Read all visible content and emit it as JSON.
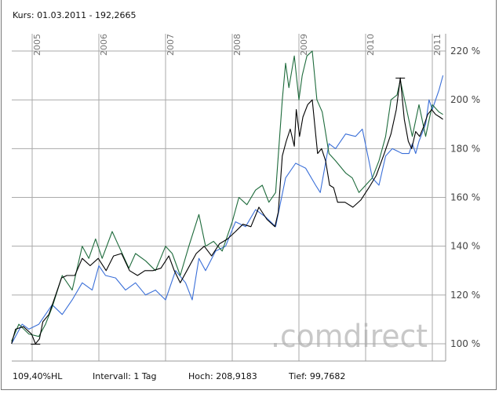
{
  "header": {
    "quote": "Kurs: 01.03.2011 - 192,2665"
  },
  "footer": {
    "range": "109,40%HL",
    "interval": "Intervall: 1 Tag",
    "high": "Hoch: 208,9183",
    "low": "Tief: 99,7682"
  },
  "watermark": {
    "logo_text": ".comdirect"
  },
  "colors": {
    "main": "#000000",
    "compare1": "#1e6b3c",
    "compare2": "#3a6fd8",
    "grid": "#aaaaaa",
    "axis_text": "#444444"
  },
  "chart_data": {
    "type": "line",
    "title": "",
    "xlabel": "",
    "ylabel": "",
    "xlim": [
      2004.69,
      2011.17
    ],
    "ylim": [
      92,
      228
    ],
    "grid": true,
    "x_ticks": [
      "2005",
      "2006",
      "2007",
      "2008",
      "2009",
      "2010",
      "2011"
    ],
    "x_tick_values": [
      2005,
      2006,
      2007,
      2008,
      2009,
      2010,
      2011
    ],
    "y_ticks": [
      "100 %",
      "120 %",
      "140 %",
      "160 %",
      "180 %",
      "200 %",
      "220 %"
    ],
    "y_tick_values": [
      100,
      120,
      140,
      160,
      180,
      200,
      220
    ],
    "high_marker": [
      2010.52,
      208.9
    ],
    "low_marker": [
      2005.05,
      99.8
    ],
    "series": [
      {
        "color": "#000000",
        "points": [
          [
            2004.69,
            100
          ],
          [
            2004.75,
            106
          ],
          [
            2004.87,
            107
          ],
          [
            2004.99,
            104
          ],
          [
            2005.05,
            100
          ],
          [
            2005.11,
            102
          ],
          [
            2005.16,
            109
          ],
          [
            2005.25,
            112
          ],
          [
            2005.34,
            119
          ],
          [
            2005.44,
            127
          ],
          [
            2005.52,
            128
          ],
          [
            2005.64,
            128
          ],
          [
            2005.75,
            135
          ],
          [
            2005.87,
            132
          ],
          [
            2005.99,
            135
          ],
          [
            2006.11,
            130
          ],
          [
            2006.22,
            136
          ],
          [
            2006.34,
            137
          ],
          [
            2006.46,
            130
          ],
          [
            2006.58,
            128
          ],
          [
            2006.69,
            130
          ],
          [
            2006.81,
            130
          ],
          [
            2006.93,
            131
          ],
          [
            2007.05,
            136
          ],
          [
            2007.13,
            130
          ],
          [
            2007.22,
            125
          ],
          [
            2007.34,
            131
          ],
          [
            2007.46,
            137
          ],
          [
            2007.58,
            140
          ],
          [
            2007.69,
            136
          ],
          [
            2007.81,
            141
          ],
          [
            2007.93,
            143
          ],
          [
            2008.05,
            146
          ],
          [
            2008.16,
            149
          ],
          [
            2008.28,
            148
          ],
          [
            2008.4,
            156
          ],
          [
            2008.52,
            151
          ],
          [
            2008.64,
            148
          ],
          [
            2008.69,
            154
          ],
          [
            2008.75,
            177
          ],
          [
            2008.81,
            183
          ],
          [
            2008.87,
            188
          ],
          [
            2008.93,
            181
          ],
          [
            2008.96,
            196
          ],
          [
            2009.01,
            185
          ],
          [
            2009.06,
            193
          ],
          [
            2009.13,
            198
          ],
          [
            2009.2,
            200
          ],
          [
            2009.25,
            186
          ],
          [
            2009.28,
            178
          ],
          [
            2009.34,
            180
          ],
          [
            2009.4,
            175
          ],
          [
            2009.46,
            165
          ],
          [
            2009.52,
            164
          ],
          [
            2009.58,
            158
          ],
          [
            2009.69,
            158
          ],
          [
            2009.81,
            156
          ],
          [
            2009.93,
            159
          ],
          [
            2010.05,
            164
          ],
          [
            2010.16,
            169
          ],
          [
            2010.28,
            178
          ],
          [
            2010.38,
            186
          ],
          [
            2010.46,
            196
          ],
          [
            2010.52,
            209
          ],
          [
            2010.58,
            192
          ],
          [
            2010.64,
            183
          ],
          [
            2010.69,
            180
          ],
          [
            2010.75,
            187
          ],
          [
            2010.81,
            185
          ],
          [
            2010.87,
            189
          ],
          [
            2010.93,
            194
          ],
          [
            2010.99,
            196
          ],
          [
            2011.05,
            194
          ],
          [
            2011.11,
            193
          ],
          [
            2011.16,
            192
          ]
        ]
      },
      {
        "color": "#1e6b3c",
        "points": [
          [
            2004.69,
            101
          ],
          [
            2004.8,
            108
          ],
          [
            2004.95,
            104
          ],
          [
            2005.1,
            103
          ],
          [
            2005.2,
            108
          ],
          [
            2005.3,
            115
          ],
          [
            2005.45,
            128
          ],
          [
            2005.6,
            122
          ],
          [
            2005.75,
            140
          ],
          [
            2005.85,
            135
          ],
          [
            2005.95,
            143
          ],
          [
            2006.05,
            135
          ],
          [
            2006.2,
            146
          ],
          [
            2006.3,
            140
          ],
          [
            2006.45,
            131
          ],
          [
            2006.55,
            137
          ],
          [
            2006.7,
            134
          ],
          [
            2006.85,
            130
          ],
          [
            2007.0,
            140
          ],
          [
            2007.1,
            137
          ],
          [
            2007.22,
            128
          ],
          [
            2007.35,
            140
          ],
          [
            2007.5,
            153
          ],
          [
            2007.6,
            140
          ],
          [
            2007.72,
            142
          ],
          [
            2007.85,
            138
          ],
          [
            2008.0,
            150
          ],
          [
            2008.1,
            160
          ],
          [
            2008.22,
            157
          ],
          [
            2008.35,
            163
          ],
          [
            2008.45,
            165
          ],
          [
            2008.55,
            158
          ],
          [
            2008.65,
            162
          ],
          [
            2008.75,
            200
          ],
          [
            2008.8,
            215
          ],
          [
            2008.85,
            205
          ],
          [
            2008.93,
            218
          ],
          [
            2009.0,
            200
          ],
          [
            2009.05,
            210
          ],
          [
            2009.12,
            218
          ],
          [
            2009.2,
            220
          ],
          [
            2009.27,
            200
          ],
          [
            2009.35,
            195
          ],
          [
            2009.45,
            178
          ],
          [
            2009.55,
            175
          ],
          [
            2009.7,
            170
          ],
          [
            2009.8,
            168
          ],
          [
            2009.9,
            162
          ],
          [
            2010.0,
            165
          ],
          [
            2010.1,
            168
          ],
          [
            2010.2,
            175
          ],
          [
            2010.3,
            185
          ],
          [
            2010.38,
            200
          ],
          [
            2010.47,
            202
          ],
          [
            2010.52,
            208
          ],
          [
            2010.6,
            198
          ],
          [
            2010.7,
            185
          ],
          [
            2010.8,
            198
          ],
          [
            2010.9,
            185
          ],
          [
            2011.0,
            198
          ],
          [
            2011.1,
            195
          ],
          [
            2011.16,
            194
          ]
        ]
      },
      {
        "color": "#3a6fd8",
        "points": [
          [
            2004.69,
            100
          ],
          [
            2004.85,
            108
          ],
          [
            2004.95,
            106
          ],
          [
            2005.1,
            108
          ],
          [
            2005.3,
            116
          ],
          [
            2005.45,
            112
          ],
          [
            2005.6,
            118
          ],
          [
            2005.75,
            125
          ],
          [
            2005.9,
            122
          ],
          [
            2006.0,
            132
          ],
          [
            2006.1,
            128
          ],
          [
            2006.25,
            127
          ],
          [
            2006.4,
            122
          ],
          [
            2006.55,
            125
          ],
          [
            2006.7,
            120
          ],
          [
            2006.85,
            122
          ],
          [
            2007.0,
            118
          ],
          [
            2007.15,
            130
          ],
          [
            2007.3,
            125
          ],
          [
            2007.4,
            118
          ],
          [
            2007.5,
            135
          ],
          [
            2007.6,
            130
          ],
          [
            2007.75,
            138
          ],
          [
            2007.9,
            140
          ],
          [
            2008.05,
            150
          ],
          [
            2008.2,
            148
          ],
          [
            2008.35,
            155
          ],
          [
            2008.5,
            152
          ],
          [
            2008.65,
            148
          ],
          [
            2008.8,
            168
          ],
          [
            2008.95,
            174
          ],
          [
            2009.1,
            172
          ],
          [
            2009.25,
            165
          ],
          [
            2009.32,
            162
          ],
          [
            2009.45,
            182
          ],
          [
            2009.55,
            180
          ],
          [
            2009.7,
            186
          ],
          [
            2009.85,
            185
          ],
          [
            2009.95,
            188
          ],
          [
            2010.05,
            175
          ],
          [
            2010.1,
            168
          ],
          [
            2010.2,
            165
          ],
          [
            2010.3,
            177
          ],
          [
            2010.4,
            180
          ],
          [
            2010.55,
            178
          ],
          [
            2010.65,
            178
          ],
          [
            2010.7,
            182
          ],
          [
            2010.75,
            178
          ],
          [
            2010.8,
            183
          ],
          [
            2010.9,
            190
          ],
          [
            2010.95,
            200
          ],
          [
            2011.0,
            196
          ],
          [
            2011.05,
            200
          ],
          [
            2011.1,
            204
          ],
          [
            2011.16,
            210
          ]
        ]
      }
    ]
  }
}
